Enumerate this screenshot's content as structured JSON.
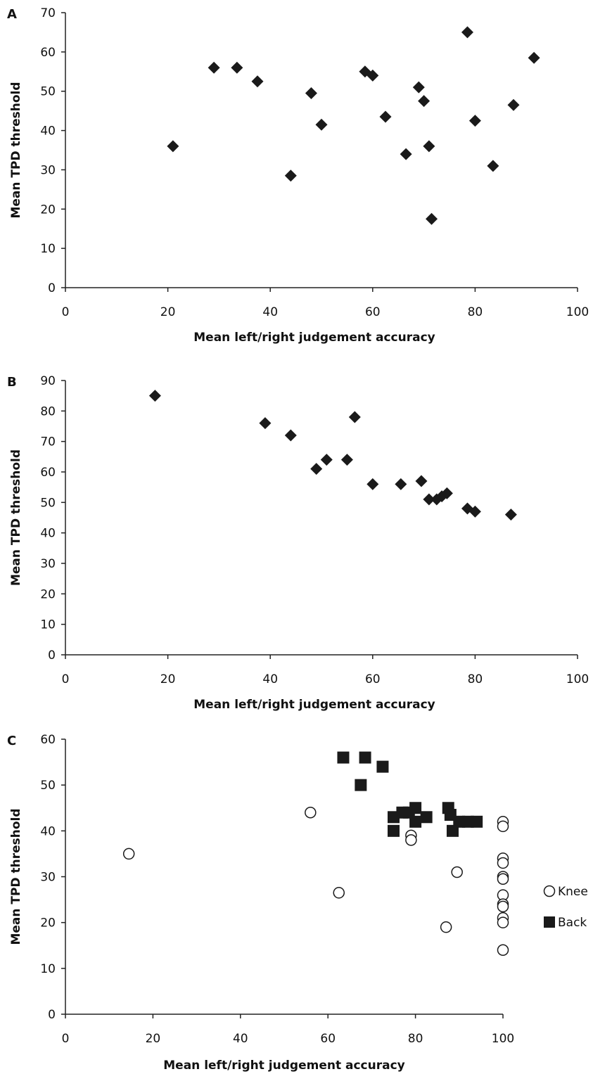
{
  "chart_data": [
    {
      "panel": "A",
      "type": "scatter",
      "xlabel": "Mean left/right judgement accuracy",
      "ylabel": "Mean TPD threshold",
      "xlim": [
        0,
        100
      ],
      "ylim": [
        0,
        70
      ],
      "xticks": [
        0,
        20,
        40,
        60,
        80,
        100
      ],
      "yticks": [
        0,
        10,
        20,
        30,
        40,
        50,
        60,
        70
      ],
      "series": [
        {
          "marker": "diamond",
          "color": "#1a1a1a",
          "points": [
            [
              21,
              36
            ],
            [
              29,
              56
            ],
            [
              33.5,
              56
            ],
            [
              37.5,
              52.5
            ],
            [
              44,
              28.5
            ],
            [
              48,
              49.5
            ],
            [
              50,
              41.5
            ],
            [
              58.5,
              55
            ],
            [
              60,
              54
            ],
            [
              62.5,
              43.5
            ],
            [
              66.5,
              34
            ],
            [
              69,
              51
            ],
            [
              70,
              47.5
            ],
            [
              71,
              36
            ],
            [
              71.5,
              17.5
            ],
            [
              78.5,
              65
            ],
            [
              80,
              42.5
            ],
            [
              83.5,
              31
            ],
            [
              87.5,
              46.5
            ],
            [
              91.5,
              58.5
            ]
          ]
        }
      ]
    },
    {
      "panel": "B",
      "type": "scatter",
      "xlabel": "Mean left/right judgement accuracy",
      "ylabel": "Mean TPD threshold",
      "xlim": [
        0,
        100
      ],
      "ylim": [
        0,
        90
      ],
      "xticks": [
        0,
        20,
        40,
        60,
        80,
        100
      ],
      "yticks": [
        0,
        10,
        20,
        30,
        40,
        50,
        60,
        70,
        80,
        90
      ],
      "series": [
        {
          "marker": "diamond",
          "color": "#1a1a1a",
          "points": [
            [
              17.5,
              85
            ],
            [
              39,
              76
            ],
            [
              44,
              72
            ],
            [
              49,
              61
            ],
            [
              51,
              64
            ],
            [
              55,
              64
            ],
            [
              56.5,
              78
            ],
            [
              60,
              56
            ],
            [
              65.5,
              56
            ],
            [
              69.5,
              57
            ],
            [
              71,
              51
            ],
            [
              72.5,
              51
            ],
            [
              73.5,
              52
            ],
            [
              74.5,
              53
            ],
            [
              78.5,
              48
            ],
            [
              80,
              47
            ],
            [
              87,
              46
            ]
          ]
        }
      ]
    },
    {
      "panel": "C",
      "type": "scatter",
      "xlabel": "Mean left/right judgement accuracy",
      "ylabel": "Mean TPD threshold",
      "xlim": [
        0,
        100
      ],
      "ylim": [
        0,
        60
      ],
      "xticks": [
        0,
        20,
        40,
        60,
        80,
        100
      ],
      "yticks": [
        0,
        10,
        20,
        30,
        40,
        50,
        60
      ],
      "legend_position": "right",
      "series": [
        {
          "name": "Knee",
          "marker": "circle-open",
          "color": "#1a1a1a",
          "points": [
            [
              14.5,
              35
            ],
            [
              56,
              44
            ],
            [
              62.5,
              26.5
            ],
            [
              79,
              39
            ],
            [
              79,
              38
            ],
            [
              87,
              19
            ],
            [
              89.5,
              31
            ],
            [
              100,
              42
            ],
            [
              100,
              41
            ],
            [
              100,
              34
            ],
            [
              100,
              33
            ],
            [
              100,
              30
            ],
            [
              100,
              29.5
            ],
            [
              100,
              26
            ],
            [
              100,
              24
            ],
            [
              100,
              23.5
            ],
            [
              100,
              21
            ],
            [
              100,
              20
            ],
            [
              100,
              14
            ]
          ]
        },
        {
          "name": "Back",
          "marker": "square",
          "color": "#1a1a1a",
          "points": [
            [
              63.5,
              56
            ],
            [
              68.5,
              56
            ],
            [
              67.5,
              50
            ],
            [
              72.5,
              54
            ],
            [
              75,
              43
            ],
            [
              75,
              40
            ],
            [
              77,
              44
            ],
            [
              78.5,
              44
            ],
            [
              80,
              45
            ],
            [
              80,
              42
            ],
            [
              82.5,
              43
            ],
            [
              87.5,
              45
            ],
            [
              88,
              43.5
            ],
            [
              88.5,
              40
            ],
            [
              90,
              42
            ],
            [
              92,
              42
            ],
            [
              94,
              42
            ]
          ]
        }
      ]
    }
  ]
}
